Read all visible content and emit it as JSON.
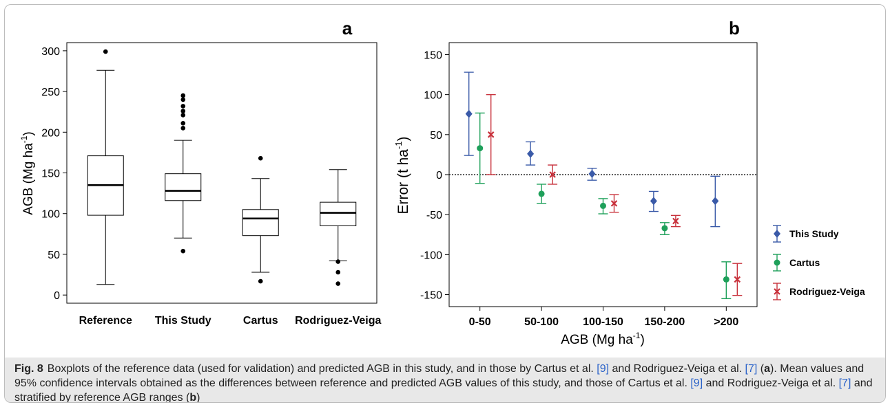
{
  "chart_data": [
    {
      "panel": "a",
      "type": "boxplot",
      "ylabel_main": "AGB (Mg ha",
      "ylabel_sup": "-1",
      "ylabel_end": ")",
      "ylim": [
        -10,
        310
      ],
      "yticks": [
        0,
        50,
        100,
        150,
        200,
        250,
        300
      ],
      "categories": [
        "Reference",
        "This Study",
        "Cartus",
        "Rodriguez-Veiga"
      ],
      "boxes": [
        {
          "min": 13,
          "q1": 98,
          "median": 135,
          "q3": 171,
          "max": 276,
          "outliers": [
            299
          ]
        },
        {
          "min": 70,
          "q1": 116,
          "median": 128,
          "q3": 149,
          "max": 190,
          "outliers": [
            54,
            205,
            211,
            221,
            226,
            232,
            240,
            245
          ]
        },
        {
          "min": 28,
          "q1": 73,
          "median": 94,
          "q3": 105,
          "max": 143,
          "outliers": [
            17,
            168
          ]
        },
        {
          "min": 42,
          "q1": 85,
          "median": 101,
          "q3": 114,
          "max": 154,
          "outliers": [
            14,
            28,
            41
          ]
        }
      ]
    },
    {
      "panel": "b",
      "type": "errorbar",
      "xlabel_main": "AGB (Mg ha",
      "xlabel_sup": "-1",
      "xlabel_end": ")",
      "ylabel_main": "Error (t ha",
      "ylabel_sup": "-1",
      "ylabel_end": ")",
      "ylim": [
        -165,
        165
      ],
      "yticks": [
        -150,
        -100,
        -50,
        0,
        50,
        100,
        150
      ],
      "categories": [
        "0-50",
        "50-100",
        "100-150",
        "150-200",
        ">200"
      ],
      "reference_line": 0,
      "series": [
        {
          "name": "This Study",
          "color": "#3a5aa8",
          "marker": "diamond",
          "mean": [
            76,
            26,
            1,
            -33,
            -33
          ],
          "low": [
            24,
            12,
            -7,
            -46,
            -65
          ],
          "high": [
            128,
            41,
            8,
            -21,
            -2
          ]
        },
        {
          "name": "Cartus",
          "color": "#1ea05a",
          "marker": "circle",
          "mean": [
            33,
            -24,
            -39,
            -67,
            -131
          ],
          "low": [
            -11,
            -36,
            -49,
            -75,
            -155
          ],
          "high": [
            77,
            -12,
            -30,
            -60,
            -109
          ]
        },
        {
          "name": "Rodriguez-Veiga",
          "color": "#c8323c",
          "marker": "cross",
          "mean": [
            50,
            0,
            -36,
            -58,
            -131
          ],
          "low": [
            0,
            -12,
            -47,
            -65,
            -151
          ],
          "high": [
            100,
            12,
            -25,
            -51,
            -111
          ]
        }
      ]
    }
  ],
  "caption": {
    "label": "Fig. 8",
    "p1": "Boxplots of the reference data (used for validation) and predicted AGB in this study, and in those by Cartus et al. ",
    "r1": "[9]",
    "p2": " and Rodriguez-Veiga et al. ",
    "r2": "[7]",
    "p3": " (",
    "b1": "a",
    "p4": "). Mean values and 95% confidence intervals obtained as the differences between reference and predicted AGB values of this study, and those of Cartus et al. ",
    "r3": "[9]",
    "p5": " and Rodriguez-Veiga et al. ",
    "r4": "[7]",
    "p6": " and stratified by reference AGB ranges (",
    "b2": "b",
    "p7": ")"
  }
}
